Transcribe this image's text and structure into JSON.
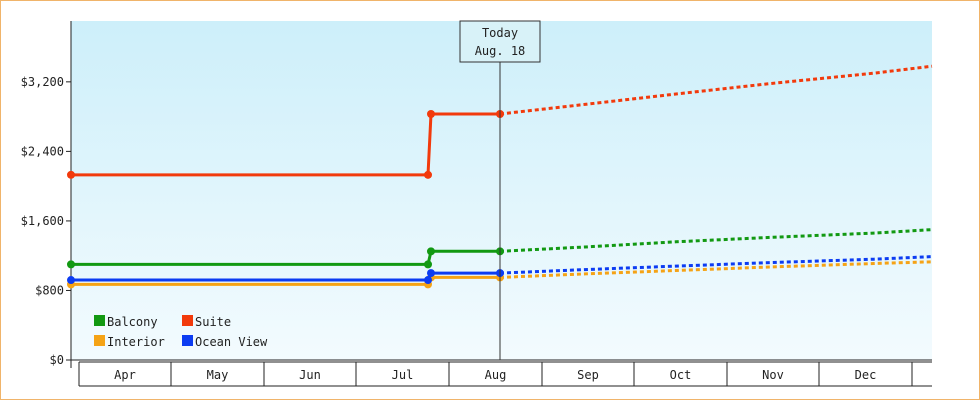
{
  "chart_data": {
    "type": "line",
    "title": "",
    "xlabel": "",
    "ylabel": "",
    "x_unit": "month",
    "months": [
      "Apr",
      "May",
      "Jun",
      "Jul",
      "Aug",
      "Sep",
      "Oct",
      "Nov",
      "Dec"
    ],
    "ylim": [
      0,
      3900
    ],
    "yticks": [
      0,
      800,
      1600,
      2400,
      3200
    ],
    "ytick_labels": [
      "$0",
      "$800",
      "$1,600",
      "$2,400",
      "$3,200"
    ],
    "grid": false,
    "legend_position": "bottom-left",
    "today_label_1": "Today",
    "today_label_2": "Aug. 18",
    "today_x": "Aug 18",
    "series": [
      {
        "name": "Balcony",
        "color": "#129912",
        "historical": [
          [
            "Apr 1",
            1100
          ],
          [
            "Jul 25",
            1100
          ],
          [
            "Jul 26",
            1250
          ],
          [
            "Aug 18",
            1250
          ]
        ],
        "forecast": [
          [
            "Aug 18",
            1250
          ],
          [
            "Sep 15",
            1300
          ],
          [
            "Oct 15",
            1360
          ],
          [
            "Nov 15",
            1410
          ],
          [
            "Dec 15",
            1460
          ],
          [
            "Dec 31",
            1500
          ]
        ]
      },
      {
        "name": "Interior",
        "color": "#f5a316",
        "historical": [
          [
            "Apr 1",
            870
          ],
          [
            "Jul 25",
            870
          ],
          [
            "Jul 26",
            950
          ],
          [
            "Aug 18",
            950
          ]
        ],
        "forecast": [
          [
            "Aug 18",
            950
          ],
          [
            "Sep 15",
            990
          ],
          [
            "Oct 15",
            1030
          ],
          [
            "Nov 15",
            1070
          ],
          [
            "Dec 15",
            1110
          ],
          [
            "Dec 31",
            1130
          ]
        ]
      },
      {
        "name": "Suite",
        "color": "#f23a0c",
        "historical": [
          [
            "Apr 1",
            2130
          ],
          [
            "Jul 25",
            2130
          ],
          [
            "Jul 26",
            2830
          ],
          [
            "Aug 18",
            2830
          ]
        ],
        "forecast": [
          [
            "Aug 18",
            2830
          ],
          [
            "Sep 15",
            2940
          ],
          [
            "Oct 15",
            3060
          ],
          [
            "Nov 15",
            3180
          ],
          [
            "Dec 15",
            3300
          ],
          [
            "Dec 31",
            3380
          ]
        ]
      },
      {
        "name": "Ocean View",
        "color": "#0c3cf2",
        "historical": [
          [
            "Apr 1",
            920
          ],
          [
            "Jul 25",
            920
          ],
          [
            "Jul 26",
            1000
          ],
          [
            "Aug 18",
            1000
          ]
        ],
        "forecast": [
          [
            "Aug 18",
            1000
          ],
          [
            "Sep 15",
            1040
          ],
          [
            "Oct 15",
            1080
          ],
          [
            "Nov 15",
            1120
          ],
          [
            "Dec 15",
            1160
          ],
          [
            "Dec 31",
            1190
          ]
        ]
      }
    ]
  }
}
